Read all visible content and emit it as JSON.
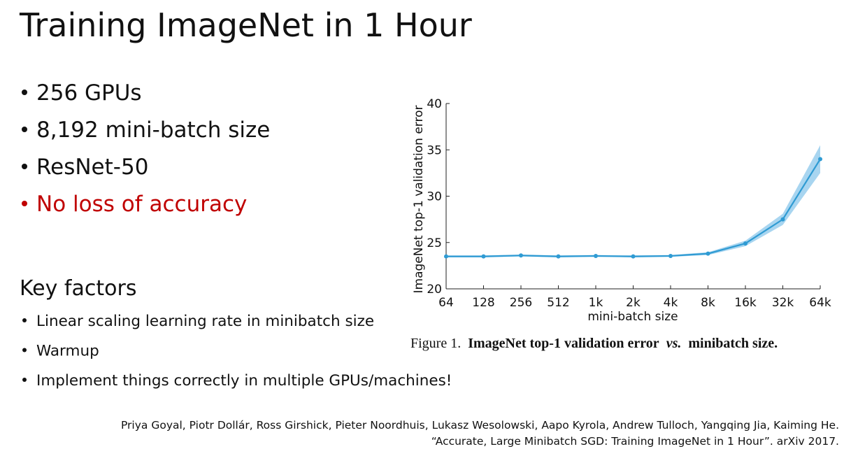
{
  "title": "Training ImageNet in 1 Hour",
  "bullets": [
    "256 GPUs",
    "8,192 mini-batch size",
    "ResNet-50",
    "No loss of accuracy"
  ],
  "key_factors": {
    "heading": "Key factors",
    "items": [
      "Linear scaling learning rate in minibatch size",
      "Warmup",
      "Implement things correctly in multiple GPUs/machines!"
    ]
  },
  "citation": [
    "Priya Goyal, Piotr Dollár, Ross Girshick, Pieter Noordhuis, Lukasz Wesolowski, Aapo Kyrola, Andrew Tulloch, Yangqing Jia, Kaiming He.",
    "“Accurate, Large Minibatch SGD: Training ImageNet in 1 Hour”. arXiv 2017."
  ],
  "chart_data": {
    "type": "line",
    "x_label": "mini-batch size",
    "y_label": "ImageNet top-1 validation error",
    "caption": {
      "prefix": "Figure 1.",
      "bold": "ImageNet top-1 validation error",
      "italic": "vs.",
      "end": "minibatch size."
    },
    "categories": [
      "64",
      "128",
      "256",
      "512",
      "1k",
      "2k",
      "4k",
      "8k",
      "16k",
      "32k",
      "64k"
    ],
    "series": [
      {
        "color": "#2f9bd3",
        "values": [
          23.5,
          23.5,
          23.6,
          23.5,
          23.55,
          23.5,
          23.55,
          23.8,
          24.9,
          27.5,
          34.0
        ],
        "errors": [
          0.1,
          0.1,
          0.1,
          0.1,
          0.1,
          0.1,
          0.1,
          0.15,
          0.3,
          0.6,
          1.5
        ],
        "band_color": "#a8d5f0"
      }
    ],
    "ylim": [
      20,
      40
    ],
    "yticks": [
      20,
      25,
      30,
      35,
      40
    ]
  }
}
